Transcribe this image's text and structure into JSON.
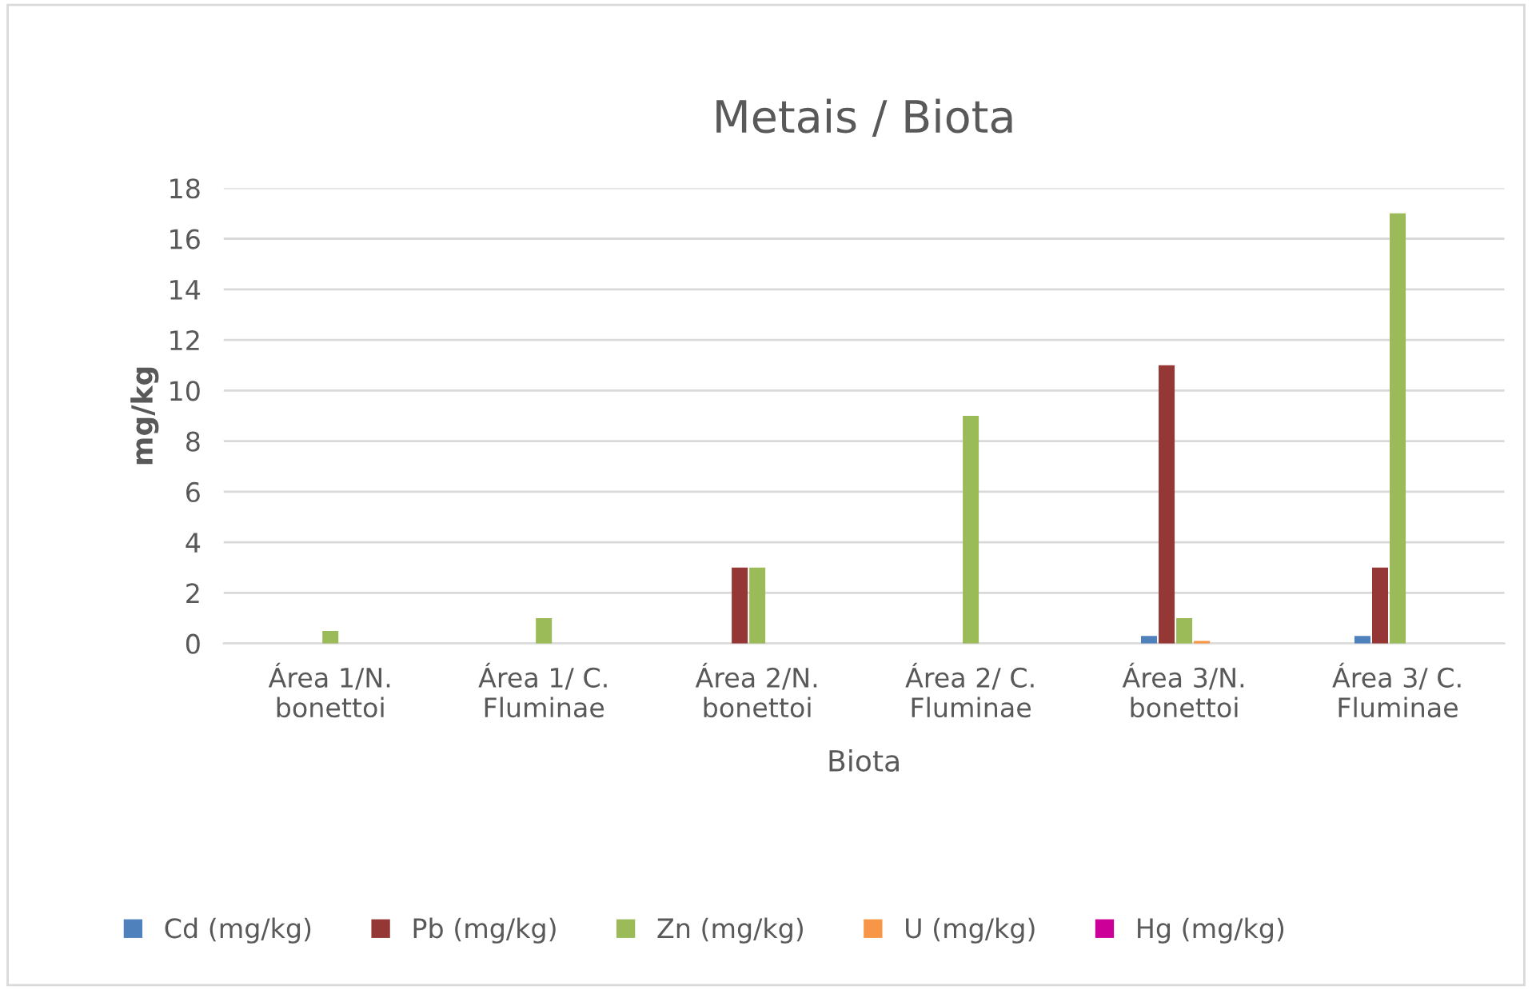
{
  "chart_data": {
    "type": "bar",
    "title": "Metais / Biota",
    "xlabel": "Biota",
    "ylabel": "mg/kg",
    "categories": [
      "Área 1/N.\nbonettoi",
      "Área 1/ C.\nFluminae",
      "Área 2/N.\nbonettoi",
      "Área 2/ C.\nFluminae",
      "Área 3/N.\nbonettoi",
      "Área 3/ C.\nFluminae"
    ],
    "series": [
      {
        "name": "Cd (mg/kg)",
        "color": "#4f81bd",
        "values": [
          0,
          0,
          0,
          0,
          0.3,
          0.3
        ]
      },
      {
        "name": "Pb (mg/kg)",
        "color": "#953735",
        "values": [
          0,
          0,
          3,
          0,
          11,
          3
        ]
      },
      {
        "name": "Zn (mg/kg)",
        "color": "#9bbb59",
        "values": [
          0.5,
          1,
          3,
          9,
          1,
          17
        ]
      },
      {
        "name": "U (mg/kg)",
        "color": "#f79646",
        "values": [
          0,
          0,
          0,
          0,
          0.1,
          0
        ]
      },
      {
        "name": "Hg (mg/kg)",
        "color": "#cc0099",
        "values": [
          0,
          0,
          0,
          0,
          0,
          0
        ]
      }
    ],
    "ylim": [
      0,
      18
    ],
    "yticks": [
      0,
      2,
      4,
      6,
      8,
      10,
      12,
      14,
      16,
      18
    ],
    "grid": "y",
    "legend": "bottom"
  }
}
